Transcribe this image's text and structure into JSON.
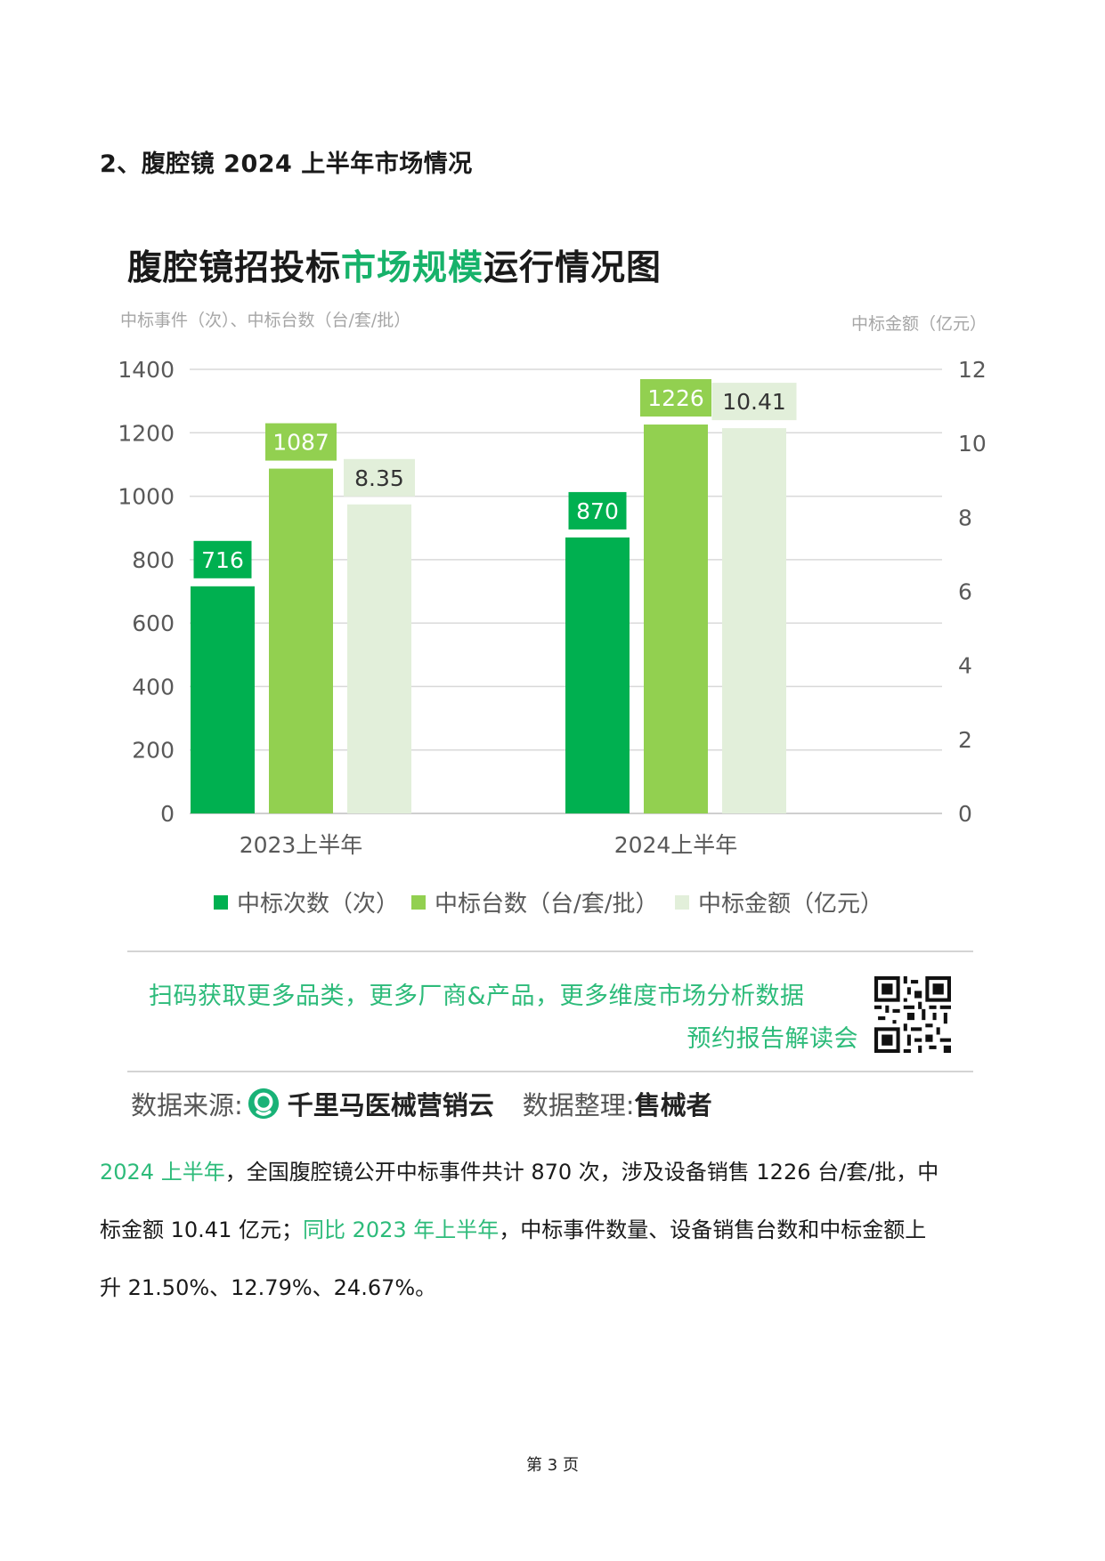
{
  "section_heading": "2、腹腔镜 2024 上半年市场情况",
  "chart_title": {
    "part1": "腹腔镜招投标",
    "part2": "市场规模",
    "part3": "运行情况图"
  },
  "chart_data": {
    "type": "bar",
    "left_axis_label": "中标事件（次）、中标台数（台/套/批）",
    "right_axis_label": "中标金额（亿元）",
    "categories": [
      "2023上半年",
      "2024上半年"
    ],
    "y_left_lim": [
      0,
      1400
    ],
    "y_left_ticks": [
      0,
      200,
      400,
      600,
      800,
      1000,
      1200,
      1400
    ],
    "y_right_lim": [
      0,
      12
    ],
    "y_right_ticks": [
      0,
      2,
      4,
      6,
      8,
      10,
      12
    ],
    "grid": true,
    "legend_position": "bottom",
    "series": [
      {
        "name": "中标次数（次）",
        "axis": "left",
        "values": [
          716,
          870
        ],
        "labels": [
          "716",
          "870"
        ],
        "color": "#00b050"
      },
      {
        "name": "中标台数（台/套/批）",
        "axis": "left",
        "values": [
          1087,
          1226
        ],
        "labels": [
          "1087",
          "1226"
        ],
        "color": "#92d050"
      },
      {
        "name": "中标金额（亿元）",
        "axis": "right",
        "values": [
          8.35,
          10.41
        ],
        "labels": [
          "8.35",
          "10.41"
        ],
        "color": "#e2efda"
      }
    ]
  },
  "promo": {
    "line1": "扫码获取更多品类，更多厂商&产品，更多维度市场分析数据",
    "line2": "预约报告解读会",
    "qr_icon": "qr-code-icon"
  },
  "source": {
    "label": "数据来源:",
    "brand_icon": "qianlima-logo-icon",
    "brand": "千里马医械营销云",
    "organizer_label": "数据整理:",
    "organizer": "售械者"
  },
  "paragraph": {
    "line1_green": "2024 上半年",
    "line1_rest": "，全国腹腔镜公开中标事件共计 870 次，涉及设备销售 1226 台/套/批，中",
    "line2_start": "标金额 10.41 亿元；",
    "line2_green": "同比 2023 年上半年",
    "line2_rest": "，中标事件数量、设备销售台数和中标金额上",
    "line3": "升 21.50%、12.79%、24.67%。"
  },
  "page_number": "第 3 页",
  "colors": {
    "accent_green": "#2dbb7a",
    "bar_dark": "#00b050",
    "bar_mid": "#92d050",
    "bar_light": "#e2efda"
  }
}
